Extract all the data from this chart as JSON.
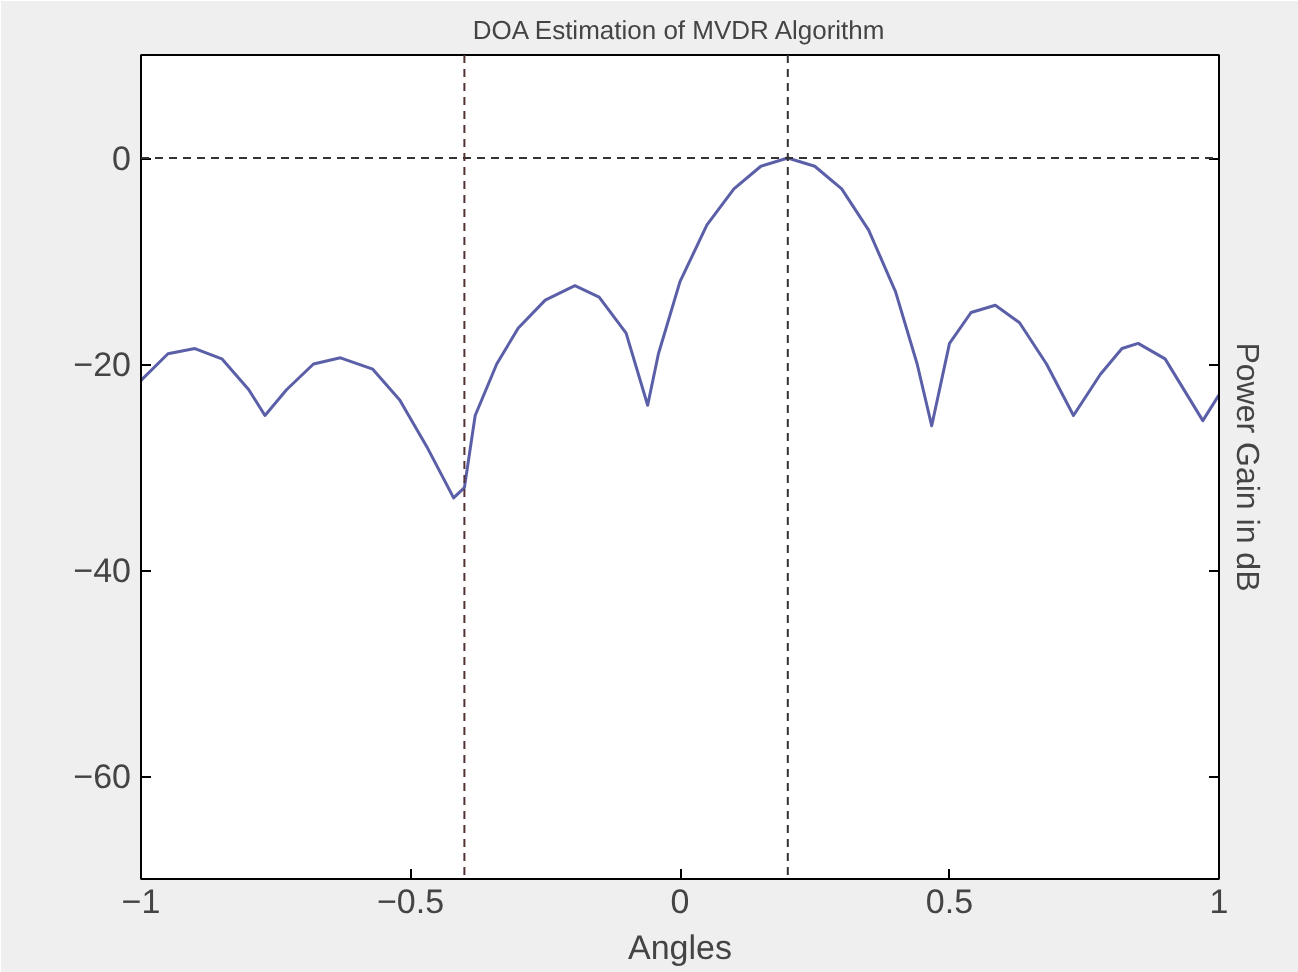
{
  "chart_data": {
    "type": "line",
    "title": "DOA Estimation of MVDR Algorithm",
    "xlabel": "Angles",
    "ylabel": "Power Gain in dB",
    "xlim": [
      -1,
      1
    ],
    "ylim": [
      -70,
      10
    ],
    "xticks": [
      -1,
      -0.5,
      0,
      0.5,
      1
    ],
    "yticks": [
      -60,
      -40,
      -20,
      0
    ],
    "grid": false,
    "line_style": "solid",
    "x": [
      -1,
      -0.95,
      -0.9,
      -0.85,
      -0.8,
      -0.77,
      -0.73,
      -0.68,
      -0.63,
      -0.57,
      -0.52,
      -0.47,
      -0.42,
      -0.4,
      -0.38,
      -0.34,
      -0.3,
      -0.25,
      -0.195,
      -0.15,
      -0.1,
      -0.06,
      -0.04,
      0,
      0.05,
      0.1,
      0.15,
      0.2,
      0.25,
      0.3,
      0.35,
      0.4,
      0.44,
      0.467,
      0.5,
      0.54,
      0.585,
      0.63,
      0.68,
      0.73,
      0.78,
      0.82,
      0.85,
      0.9,
      0.97,
      1
    ],
    "series": [
      {
        "color": "#5a5fa8",
        "values": [
          -21.6,
          -19,
          -18.5,
          -19.5,
          -22.5,
          -25,
          -22.5,
          -20,
          -19.4,
          -20.5,
          -23.5,
          -28,
          -33,
          -32,
          -25,
          -20,
          -16.5,
          -13.8,
          -12.4,
          -13.5,
          -17,
          -24,
          -19,
          -12,
          -6.5,
          -3,
          -0.8,
          0,
          -0.8,
          -3,
          -7,
          -13,
          -20,
          -26,
          -18,
          -15,
          -14.3,
          -16,
          -20,
          -25,
          -21,
          -18.5,
          -18,
          -19.5,
          -25.5,
          -23
        ]
      }
    ],
    "ref_lines": [
      {
        "axis": "y",
        "value": 0,
        "color": "#333333",
        "line_style": "dashed"
      },
      {
        "axis": "x",
        "value": -0.4,
        "color": "#553333",
        "line_style": "dashed"
      },
      {
        "axis": "x",
        "value": 0.2,
        "color": "#333333",
        "line_style": "dashed"
      }
    ]
  }
}
